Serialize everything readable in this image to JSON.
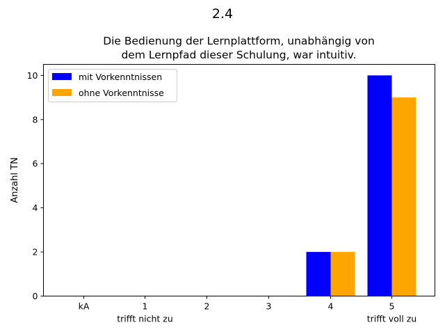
{
  "figure_title": "2.4",
  "chart_data": {
    "type": "bar",
    "title_lines": [
      "Die Bedienung der Lernplattform, unabhängig von",
      "dem Lernpfad dieser Schulung, war intuitiv."
    ],
    "xlabel": "",
    "ylabel": "Anzahl TN",
    "categories": [
      "kA",
      "1",
      "2",
      "3",
      "4",
      "5"
    ],
    "category_sublabels": [
      "",
      "trifft nicht zu",
      "",
      "",
      "",
      "trifft voll zu"
    ],
    "series": [
      {
        "name": "mit Vorkenntnissen",
        "color": "#0000ff",
        "values": [
          0,
          0,
          0,
          0,
          2,
          10
        ]
      },
      {
        "name": "ohne Vorkenntnisse",
        "color": "#ffa500",
        "values": [
          0,
          0,
          0,
          0,
          2,
          9
        ]
      }
    ],
    "ylim": [
      0,
      10.5
    ],
    "yticks": [
      0,
      2,
      4,
      6,
      8,
      10
    ],
    "grid": false,
    "legend_position": "top-left"
  }
}
